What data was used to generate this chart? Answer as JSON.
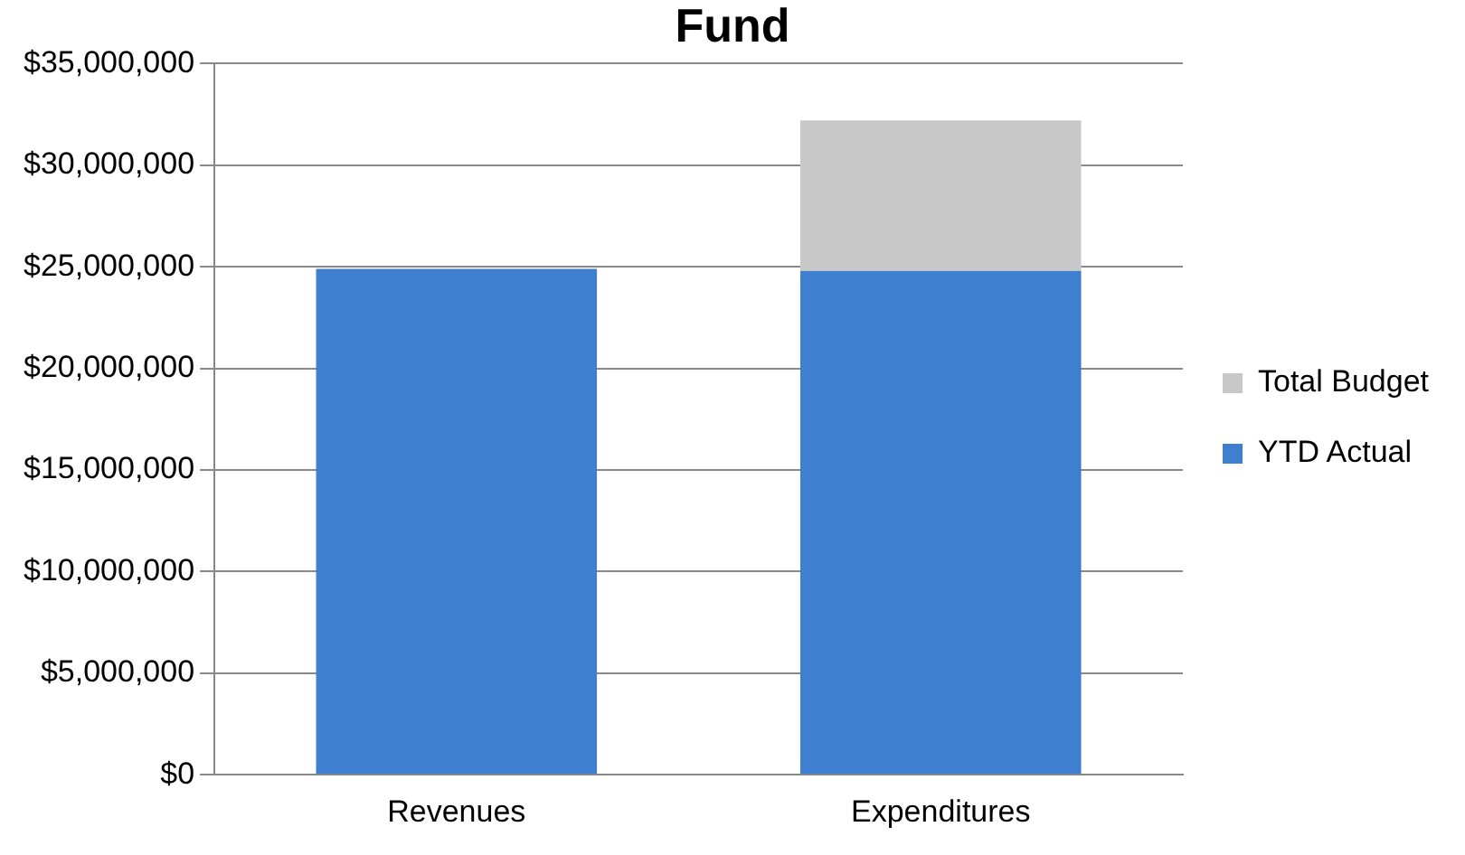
{
  "chart_data": {
    "type": "bar",
    "title": "Fund",
    "categories": [
      "Revenues",
      "Expenditures"
    ],
    "stacked": true,
    "series": [
      {
        "name": "YTD Actual",
        "color": "#3f7fcf",
        "values": [
          24900000,
          24800000
        ]
      },
      {
        "name": "Total Budget",
        "color": "#c8c8c8",
        "values": [
          null,
          7400000
        ]
      }
    ],
    "ylim": [
      0,
      35000000
    ],
    "yticks": [
      {
        "value": 0,
        "label": "$0"
      },
      {
        "value": 5000000,
        "label": "$5,000,000"
      },
      {
        "value": 10000000,
        "label": "$10,000,000"
      },
      {
        "value": 15000000,
        "label": "$15,000,000"
      },
      {
        "value": 20000000,
        "label": "$20,000,000"
      },
      {
        "value": 25000000,
        "label": "$25,000,000"
      },
      {
        "value": 30000000,
        "label": "$30,000,000"
      },
      {
        "value": 35000000,
        "label": "$35,000,000"
      }
    ],
    "grid": "y",
    "legend": "right"
  }
}
